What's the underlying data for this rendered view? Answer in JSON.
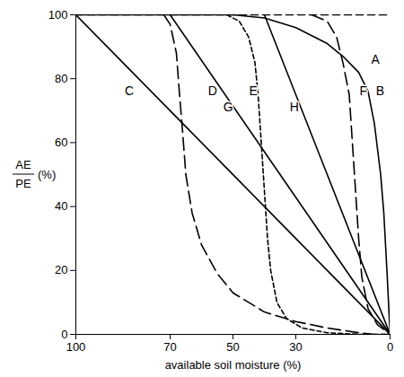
{
  "chart_data": {
    "type": "line",
    "xlabel": "available soil moisture (%)",
    "ylabel": {
      "numerator": "AE",
      "denominator": "PE",
      "unit": "(%)"
    },
    "xlim": [
      100,
      0
    ],
    "xticks": [
      100,
      70,
      50,
      30,
      0
    ],
    "ylim": [
      0,
      100
    ],
    "yticks": [
      0,
      20,
      40,
      60,
      80,
      100
    ],
    "grid": false,
    "color": "#000000",
    "series": [
      {
        "name": "A",
        "line_style": "dashed",
        "x": [
          100,
          0
        ],
        "values": [
          100,
          100
        ]
      },
      {
        "name": "B",
        "line_style": "solid",
        "x": [
          100,
          50,
          40,
          30,
          20,
          15,
          10,
          7,
          5,
          3,
          2,
          1,
          0
        ],
        "values": [
          100,
          100,
          99,
          96,
          91,
          87,
          82,
          76,
          66,
          50,
          38,
          20,
          0
        ]
      },
      {
        "name": "C",
        "line_style": "solid",
        "x": [
          100,
          0
        ],
        "values": [
          100,
          0
        ]
      },
      {
        "name": "D",
        "line_style": "long-dashed",
        "x": [
          72,
          70,
          68,
          67,
          66,
          65,
          63,
          60,
          55,
          50,
          40,
          30,
          20,
          10,
          5,
          0
        ],
        "values": [
          100,
          97,
          88,
          75,
          63,
          50,
          38,
          28,
          19,
          13,
          7,
          4,
          2,
          0.5,
          0,
          0
        ]
      },
      {
        "name": "E",
        "line_style": "short-dashed",
        "x": [
          52,
          48,
          45,
          43,
          42,
          41,
          40,
          39,
          38,
          36,
          33,
          28,
          20,
          10,
          0
        ],
        "values": [
          100,
          98,
          93,
          85,
          75,
          60,
          45,
          30,
          20,
          10,
          5,
          2,
          0.5,
          0,
          0
        ]
      },
      {
        "name": "F",
        "line_style": "long-dashed",
        "x": [
          25,
          20,
          17,
          15,
          13,
          12,
          11,
          10,
          9,
          7,
          4,
          0
        ],
        "values": [
          100,
          98,
          93,
          85,
          75,
          60,
          45,
          30,
          18,
          8,
          3,
          0
        ]
      },
      {
        "name": "G",
        "line_style": "solid",
        "x": [
          70,
          0
        ],
        "values": [
          100,
          0
        ]
      },
      {
        "name": "H",
        "line_style": "solid",
        "x": [
          40,
          0
        ],
        "values": [
          100,
          0
        ]
      }
    ],
    "annotations": [
      {
        "text": "A",
        "x": 4.7,
        "y": 86
      },
      {
        "text": "B",
        "x": 3.2,
        "y": 76
      },
      {
        "text": "C",
        "x": 83,
        "y": 76
      },
      {
        "text": "D",
        "x": 56.5,
        "y": 76
      },
      {
        "text": "E",
        "x": 43.5,
        "y": 76
      },
      {
        "text": "F",
        "x": 8.5,
        "y": 76
      },
      {
        "text": "G",
        "x": 51.5,
        "y": 71
      },
      {
        "text": "H",
        "x": 30.5,
        "y": 71
      }
    ]
  }
}
